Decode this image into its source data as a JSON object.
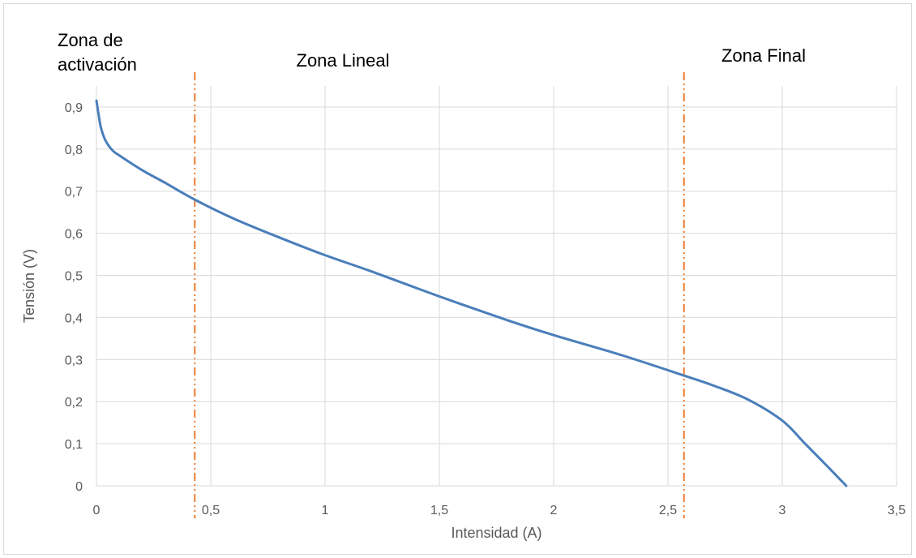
{
  "chart_data": {
    "type": "line",
    "title": "",
    "xlabel": "Intensidad (A)",
    "ylabel": "Tensión (V)",
    "xlim": [
      0,
      3.5
    ],
    "ylim": [
      0,
      0.9
    ],
    "grid": "vertical and horizontal major gridlines",
    "legend": "none",
    "x_ticks": [
      "0",
      "0,5",
      "1",
      "1,5",
      "2",
      "2,5",
      "3",
      "3,5"
    ],
    "y_ticks": [
      "0",
      "0,1",
      "0,2",
      "0,3",
      "0,4",
      "0,5",
      "0,6",
      "0,7",
      "0,8",
      "0,9"
    ],
    "series": [
      {
        "color": "#4a7ebb",
        "x": [
          0,
          0.01,
          0.02,
          0.04,
          0.07,
          0.1,
          0.2,
          0.3,
          0.43,
          0.6,
          0.8,
          1.0,
          1.2,
          1.5,
          1.8,
          2.0,
          2.3,
          2.57,
          2.7,
          2.85,
          3.0,
          3.1,
          3.2,
          3.28
        ],
        "y": [
          0.915,
          0.88,
          0.85,
          0.82,
          0.797,
          0.785,
          0.75,
          0.72,
          0.68,
          0.635,
          0.59,
          0.548,
          0.51,
          0.45,
          0.393,
          0.358,
          0.31,
          0.262,
          0.238,
          0.205,
          0.155,
          0.1,
          0.045,
          0
        ]
      }
    ],
    "vlines": [
      {
        "x": 0.43,
        "color": "#ed7d31",
        "style": "dash-dot-dot"
      },
      {
        "x": 2.57,
        "color": "#ed7d31",
        "style": "dash-dot-dot"
      }
    ],
    "annotations": [
      {
        "lines": [
          "Zona de",
          "activación"
        ]
      },
      {
        "lines": [
          "Zona Lineal"
        ]
      },
      {
        "lines": [
          "Zona Final"
        ]
      }
    ]
  }
}
